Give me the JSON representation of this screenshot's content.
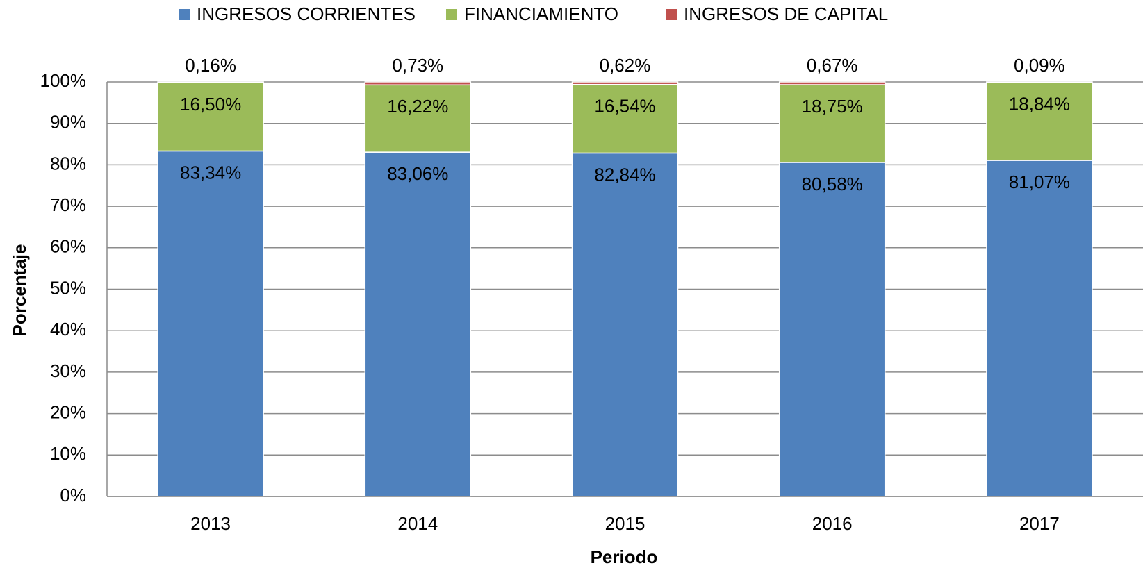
{
  "chart_data": {
    "type": "stacked_bar",
    "x_label": "Periodo",
    "y_label": "Porcentaje",
    "categories": [
      "2013",
      "2014",
      "2015",
      "2016",
      "2017"
    ],
    "series": [
      {
        "name": "INGRESOS CORRIENTES",
        "color": "#4f81bd",
        "values": [
          83.34,
          83.06,
          82.84,
          80.58,
          81.07
        ],
        "value_labels": [
          "83,34%",
          "83,06%",
          "82,84%",
          "80,58%",
          "81,07%"
        ]
      },
      {
        "name": "FINANCIAMIENTO",
        "color": "#9bbb59",
        "values": [
          16.5,
          16.22,
          16.54,
          18.75,
          18.84
        ],
        "value_labels": [
          "16,50%",
          "16,22%",
          "16,54%",
          "18,75%",
          "18,84%"
        ]
      },
      {
        "name": "INGRESOS DE CAPITAL",
        "color": "#c0504d",
        "values": [
          0.16,
          0.73,
          0.62,
          0.67,
          0.09
        ],
        "value_labels": [
          "0,16%",
          "0,73%",
          "0,62%",
          "0,67%",
          "0,09%"
        ]
      }
    ],
    "ylim": [
      0,
      100
    ],
    "yticks": [
      {
        "value": 0,
        "label": "0%"
      },
      {
        "value": 10,
        "label": "10%"
      },
      {
        "value": 20,
        "label": "20%"
      },
      {
        "value": 30,
        "label": "30%"
      },
      {
        "value": 40,
        "label": "40%"
      },
      {
        "value": 50,
        "label": "50%"
      },
      {
        "value": 60,
        "label": "60%"
      },
      {
        "value": 70,
        "label": "70%"
      },
      {
        "value": 80,
        "label": "80%"
      },
      {
        "value": 90,
        "label": "90%"
      },
      {
        "value": 100,
        "label": "100%"
      }
    ],
    "grid": true,
    "legend": "top"
  }
}
